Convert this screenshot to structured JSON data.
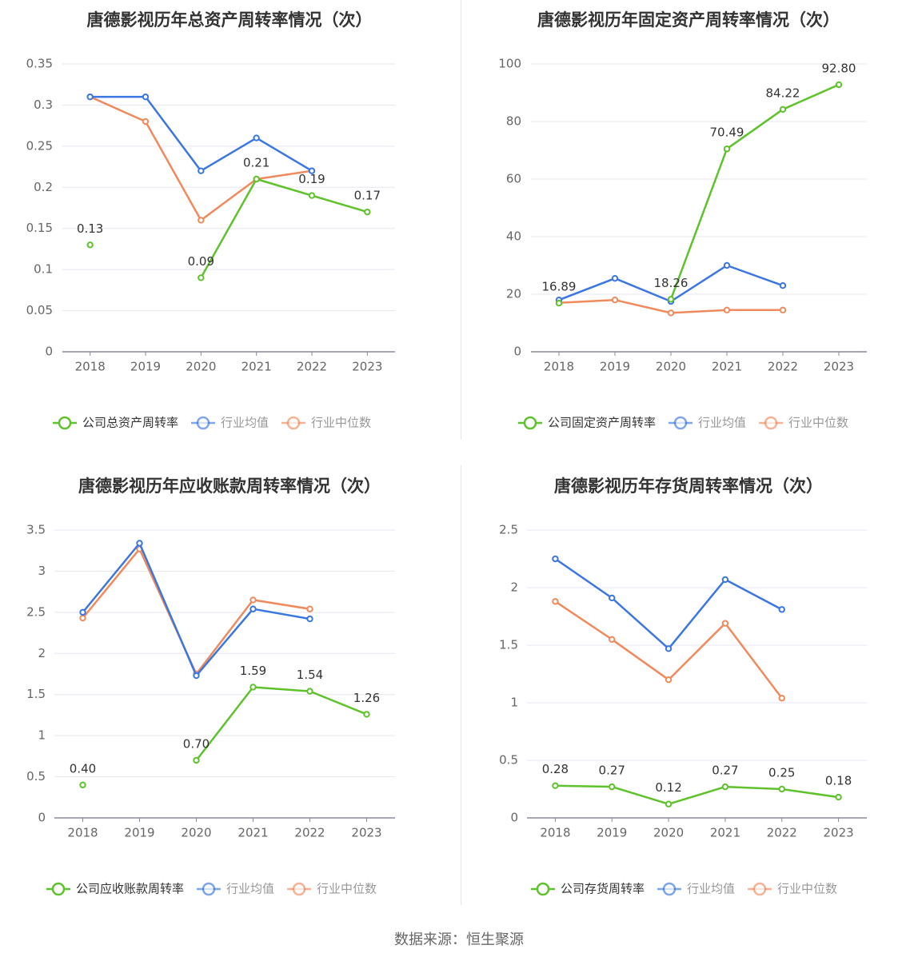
{
  "source": "数据来源：恒生聚源",
  "colors": {
    "company": "#5fc22c",
    "avg": "#3b76e1",
    "median": "#f08a5d",
    "grid": "#e6e6f0",
    "axis": "#888a99"
  },
  "chart_data": [
    {
      "type": "line",
      "title": "唐德影视历年总资产周转率情况（次）",
      "categories": [
        "2018",
        "2019",
        "2020",
        "2021",
        "2022",
        "2023"
      ],
      "ylim": [
        0,
        0.35
      ],
      "yticks": [
        0,
        0.05,
        0.1,
        0.15,
        0.2,
        0.25,
        0.3,
        0.35
      ],
      "ytick_labels": [
        "0",
        "0.05",
        "0.1",
        "0.15",
        "0.2",
        "0.25",
        "0.3",
        "0.35"
      ],
      "series": [
        {
          "name": "公司总资产周转率",
          "role": "company",
          "values": [
            0.13,
            null,
            0.09,
            0.21,
            0.19,
            0.17
          ],
          "labels": [
            "0.13",
            null,
            "0.09",
            "0.21",
            "0.19",
            "0.17"
          ]
        },
        {
          "name": "行业均值",
          "role": "avg",
          "values": [
            0.31,
            0.31,
            0.22,
            0.26,
            0.22,
            null
          ]
        },
        {
          "name": "行业中位数",
          "role": "median",
          "values": [
            0.31,
            0.28,
            0.16,
            0.21,
            0.22,
            null
          ]
        }
      ]
    },
    {
      "type": "line",
      "title": "唐德影视历年固定资产周转率情况（次）",
      "categories": [
        "2018",
        "2019",
        "2020",
        "2021",
        "2022",
        "2023"
      ],
      "ylim": [
        0,
        100
      ],
      "yticks": [
        0,
        20,
        40,
        60,
        80,
        100
      ],
      "ytick_labels": [
        "0",
        "20",
        "40",
        "60",
        "80",
        "100"
      ],
      "series": [
        {
          "name": "公司固定资产周转率",
          "role": "company",
          "values": [
            16.89,
            null,
            18.26,
            70.49,
            84.22,
            92.8
          ],
          "labels": [
            "16.89",
            null,
            "18.26",
            "70.49",
            "84.22",
            "92.80"
          ]
        },
        {
          "name": "行业均值",
          "role": "avg",
          "values": [
            18.0,
            25.5,
            17.5,
            30.0,
            23.0,
            null
          ]
        },
        {
          "name": "行业中位数",
          "role": "median",
          "values": [
            17.0,
            18.0,
            13.5,
            14.5,
            14.5,
            null
          ]
        }
      ]
    },
    {
      "type": "line",
      "title": "唐德影视历年应收账款周转率情况（次）",
      "categories": [
        "2018",
        "2019",
        "2020",
        "2021",
        "2022",
        "2023"
      ],
      "ylim": [
        0,
        3.5
      ],
      "yticks": [
        0,
        0.5,
        1,
        1.5,
        2,
        2.5,
        3,
        3.5
      ],
      "ytick_labels": [
        "0",
        "0.5",
        "1",
        "1.5",
        "2",
        "2.5",
        "3",
        "3.5"
      ],
      "series": [
        {
          "name": "公司应收账款周转率",
          "role": "company",
          "values": [
            0.4,
            null,
            0.7,
            1.59,
            1.54,
            1.26
          ],
          "labels": [
            "0.40",
            null,
            "0.70",
            "1.59",
            "1.54",
            "1.26"
          ]
        },
        {
          "name": "行业均值",
          "role": "avg",
          "values": [
            2.5,
            3.34,
            1.73,
            2.54,
            2.42,
            null
          ]
        },
        {
          "name": "行业中位数",
          "role": "median",
          "values": [
            2.43,
            3.27,
            1.75,
            2.65,
            2.54,
            null
          ]
        }
      ]
    },
    {
      "type": "line",
      "title": "唐德影视历年存货周转率情况（次）",
      "categories": [
        "2018",
        "2019",
        "2020",
        "2021",
        "2022",
        "2023"
      ],
      "ylim": [
        0,
        2.5
      ],
      "yticks": [
        0,
        0.5,
        1,
        1.5,
        2,
        2.5
      ],
      "ytick_labels": [
        "0",
        "0.5",
        "1",
        "1.5",
        "2",
        "2.5"
      ],
      "series": [
        {
          "name": "公司存货周转率",
          "role": "company",
          "values": [
            0.28,
            0.27,
            0.12,
            0.27,
            0.25,
            0.18
          ],
          "labels": [
            "0.28",
            "0.27",
            "0.12",
            "0.27",
            "0.25",
            "0.18"
          ]
        },
        {
          "name": "行业均值",
          "role": "avg",
          "values": [
            2.25,
            1.91,
            1.47,
            2.07,
            1.81,
            null
          ]
        },
        {
          "name": "行业中位数",
          "role": "median",
          "values": [
            1.88,
            1.55,
            1.2,
            1.69,
            1.04,
            null
          ]
        }
      ]
    }
  ]
}
